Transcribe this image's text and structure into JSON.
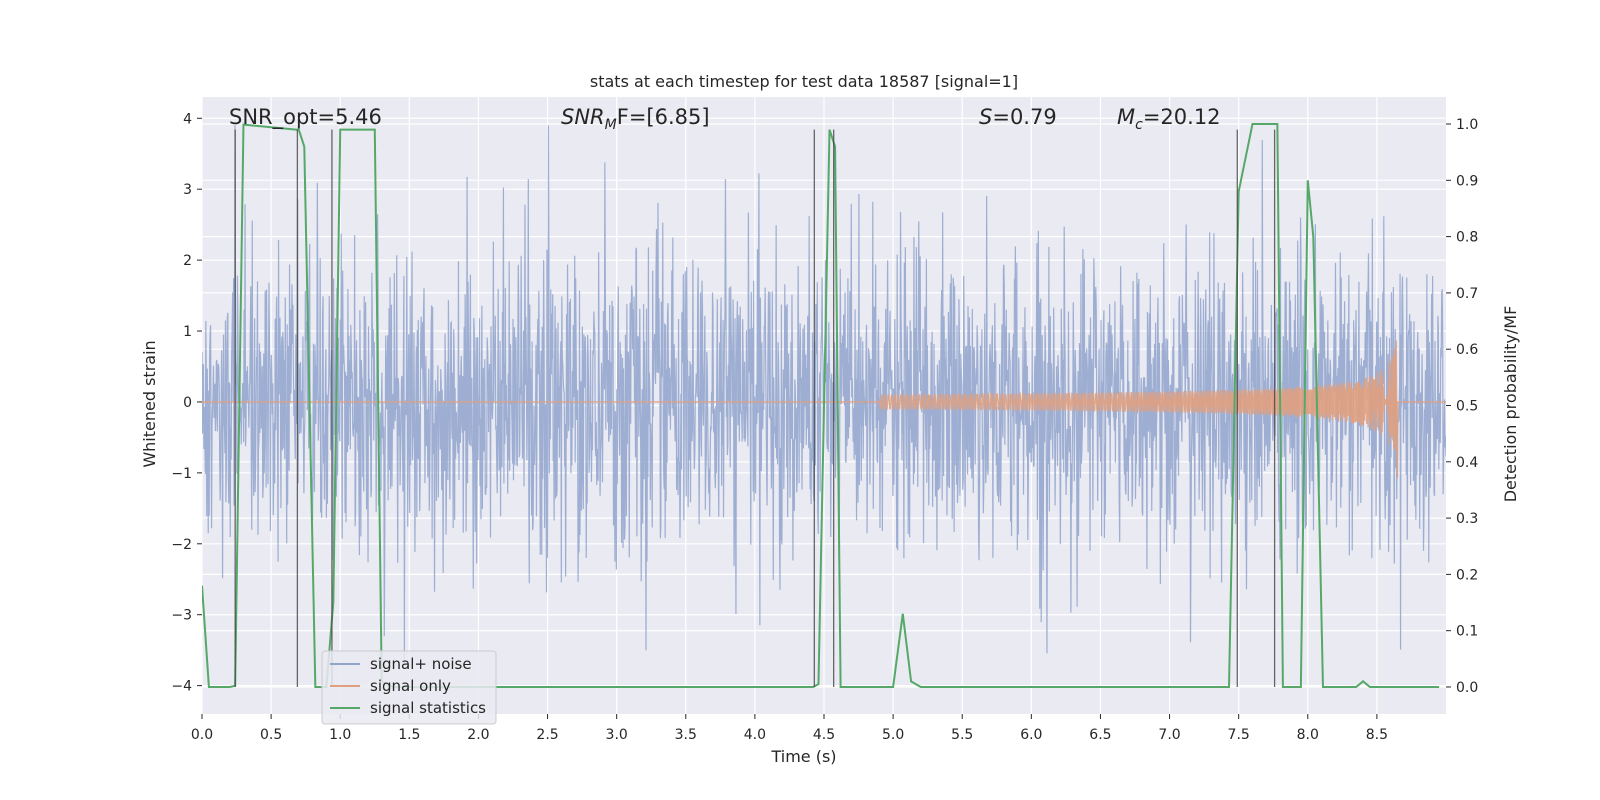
{
  "chart_data": {
    "type": "line",
    "title": "stats at each timestep for test data 18587 [signal=1]",
    "xlabel": "Time (s)",
    "ylabel": "Whitened strain",
    "y2label": "Detection probability/MF",
    "xlim": [
      0,
      9.0
    ],
    "ylim": [
      -4.4,
      4.3
    ],
    "y2lim": [
      -0.048,
      1.048
    ],
    "x_ticks": [
      0,
      0.5,
      1,
      1.5,
      2,
      2.5,
      3,
      3.5,
      4,
      4.5,
      5,
      5.5,
      6,
      6.5,
      7,
      7.5,
      8,
      8.5
    ],
    "x_tick_labels": [
      "0.0",
      "0.5",
      "1.0",
      "1.5",
      "2.0",
      "2.5",
      "3.0",
      "3.5",
      "4.0",
      "4.5",
      "5.0",
      "5.5",
      "6.0",
      "6.5",
      "7.0",
      "7.5",
      "8.0",
      "8.5"
    ],
    "y_ticks": [
      4,
      3,
      2,
      1,
      0,
      -1,
      -2,
      -3,
      -4
    ],
    "y_tick_labels": [
      "4",
      "3",
      "2",
      "1",
      "0",
      "−1",
      "−2",
      "−3",
      "−4"
    ],
    "y2_ticks": [
      1.0,
      0.9,
      0.8,
      0.7,
      0.6,
      0.5,
      0.4,
      0.3,
      0.2,
      0.1,
      0.0
    ],
    "y2_tick_labels": [
      "1.0",
      "0.9",
      "0.8",
      "0.7",
      "0.6",
      "0.5",
      "0.4",
      "0.3",
      "0.2",
      "0.1",
      "0.0"
    ],
    "annotations": {
      "snr_opt": "SNR_opt=5.46",
      "snr_mf_main": "SNR",
      "snr_mf_sub": "M",
      "snr_mf_rest": "F=[6.85]",
      "s_main": "S",
      "s_rest": "=0.79",
      "mc_main": "M",
      "mc_sub": "c",
      "mc_rest": "=20.12"
    },
    "legend": {
      "position": "lower-left",
      "entries": [
        {
          "label": "signal+ noise",
          "color": "#8da0cb"
        },
        {
          "label": "signal only",
          "color": "#e8a583"
        },
        {
          "label": "signal statistics",
          "color": "#55a868"
        }
      ]
    },
    "series": [
      {
        "name": "signal+ noise",
        "axis": "left",
        "color": "#8fa3cc",
        "description": "dense whitened noise, approx ±1.6 sigma band, peaks to ±4",
        "t_start": 0.0,
        "t_end": 9.0
      },
      {
        "name": "signal only",
        "axis": "left",
        "color": "#e0a07f",
        "description": "chirp signal, amplitude growing toward merger",
        "chirp_start": 4.9,
        "chirp_end": 8.65,
        "peak_amplitude": 1.1
      },
      {
        "name": "signal statistics",
        "axis": "right",
        "color": "#55a868",
        "x": [
          0.0,
          0.05,
          0.1,
          0.2,
          0.24,
          0.3,
          0.68,
          0.7,
          0.74,
          0.82,
          0.9,
          0.95,
          1.0,
          1.05,
          1.25,
          1.3,
          1.38,
          2.0,
          3.0,
          4.0,
          4.42,
          4.46,
          4.54,
          4.58,
          4.62,
          4.7,
          4.9,
          5.0,
          5.07,
          5.13,
          5.2,
          6.0,
          7.0,
          7.43,
          7.5,
          7.6,
          7.78,
          7.82,
          7.88,
          7.95,
          8.0,
          8.04,
          8.11,
          8.2,
          8.35,
          8.4,
          8.45,
          8.6,
          8.8,
          8.95
        ],
        "y": [
          0.18,
          0.0,
          0.0,
          0.0,
          0.002,
          0.999,
          0.99,
          0.99,
          0.96,
          0.0,
          0.0,
          0.15,
          0.99,
          0.99,
          0.99,
          0.01,
          0.0,
          0.0,
          0.0,
          0.0,
          0.0,
          0.005,
          0.99,
          0.96,
          0.0,
          0.0,
          0.0,
          0.0,
          0.13,
          0.01,
          0.0,
          0.0,
          0.0,
          0.0,
          0.88,
          1.0,
          1.0,
          0.0,
          0.0,
          0.0,
          0.9,
          0.8,
          0.0,
          0.0,
          0.0,
          0.01,
          0.0,
          0.0,
          0.0,
          0.0
        ]
      }
    ],
    "vertical_markers": [
      0.24,
      0.69,
      0.94,
      4.43,
      4.57,
      7.49,
      7.76
    ]
  }
}
